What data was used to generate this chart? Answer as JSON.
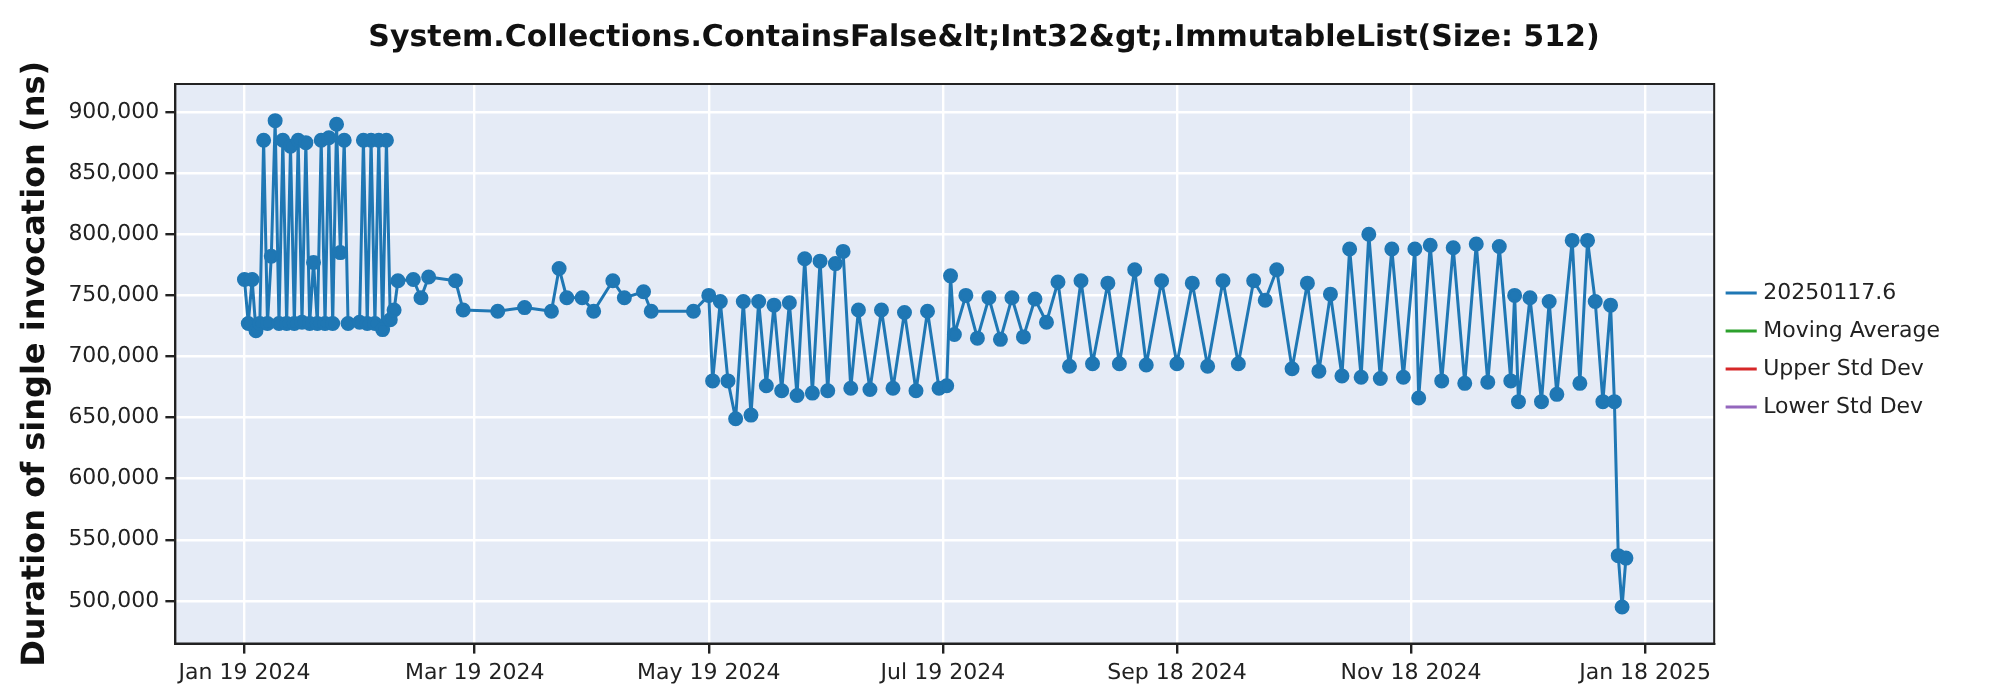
{
  "chart_data": {
    "type": "line",
    "title": "System.Collections.ContainsFalse&lt;Int32&gt;.ImmutableList(Size: 512)",
    "ylabel": "Duration of single invocation (ns)",
    "xlim": [
      "2024-01-01",
      "2025-02-05"
    ],
    "xticks": [
      {
        "value": "2024-01-19",
        "label": "Jan 19 2024"
      },
      {
        "value": "2024-03-19",
        "label": "Mar 19 2024"
      },
      {
        "value": "2024-05-19",
        "label": "May 19 2024"
      },
      {
        "value": "2024-07-19",
        "label": "Jul 19 2024"
      },
      {
        "value": "2024-09-18",
        "label": "Sep 18 2024"
      },
      {
        "value": "2024-11-18",
        "label": "Nov 18 2024"
      },
      {
        "value": "2025-01-18",
        "label": "Jan 18 2025"
      }
    ],
    "ylim": [
      465000,
      923000
    ],
    "yticks": [
      {
        "value": 500000,
        "label": "500,000"
      },
      {
        "value": 550000,
        "label": "550,000"
      },
      {
        "value": 600000,
        "label": "600,000"
      },
      {
        "value": 650000,
        "label": "650,000"
      },
      {
        "value": 700000,
        "label": "700,000"
      },
      {
        "value": 750000,
        "label": "750,000"
      },
      {
        "value": 800000,
        "label": "800,000"
      },
      {
        "value": 850000,
        "label": "850,000"
      },
      {
        "value": 900000,
        "label": "900,000"
      }
    ],
    "grid": true,
    "legend": "right",
    "marker": "circle",
    "line_style": "solid",
    "series": [
      {
        "name": "20250117.6",
        "color": "#1f77b4",
        "x": [
          "2024-01-19",
          "2024-01-20",
          "2024-01-21",
          "2024-01-22",
          "2024-01-23",
          "2024-01-24",
          "2024-01-25",
          "2024-01-26",
          "2024-01-27",
          "2024-01-28",
          "2024-01-29",
          "2024-01-30",
          "2024-01-31",
          "2024-02-01",
          "2024-02-02",
          "2024-02-03",
          "2024-02-04",
          "2024-02-05",
          "2024-02-06",
          "2024-02-07",
          "2024-02-08",
          "2024-02-09",
          "2024-02-10",
          "2024-02-11",
          "2024-02-12",
          "2024-02-13",
          "2024-02-14",
          "2024-02-15",
          "2024-02-18",
          "2024-02-19",
          "2024-02-20",
          "2024-02-21",
          "2024-02-22",
          "2024-02-23",
          "2024-02-24",
          "2024-02-25",
          "2024-02-26",
          "2024-02-27",
          "2024-02-28",
          "2024-03-03",
          "2024-03-05",
          "2024-03-07",
          "2024-03-14",
          "2024-03-16",
          "2024-03-25",
          "2024-04-01",
          "2024-04-08",
          "2024-04-10",
          "2024-04-12",
          "2024-04-16",
          "2024-04-19",
          "2024-04-24",
          "2024-04-27",
          "2024-05-02",
          "2024-05-04",
          "2024-05-15",
          "2024-05-19",
          "2024-05-20",
          "2024-05-22",
          "2024-05-24",
          "2024-05-26",
          "2024-05-28",
          "2024-05-30",
          "2024-06-01",
          "2024-06-03",
          "2024-06-05",
          "2024-06-07",
          "2024-06-09",
          "2024-06-11",
          "2024-06-13",
          "2024-06-15",
          "2024-06-17",
          "2024-06-19",
          "2024-06-21",
          "2024-06-23",
          "2024-06-25",
          "2024-06-27",
          "2024-06-30",
          "2024-07-03",
          "2024-07-06",
          "2024-07-09",
          "2024-07-12",
          "2024-07-15",
          "2024-07-18",
          "2024-07-20",
          "2024-07-21",
          "2024-07-22",
          "2024-07-25",
          "2024-07-28",
          "2024-07-31",
          "2024-08-03",
          "2024-08-06",
          "2024-08-09",
          "2024-08-12",
          "2024-08-15",
          "2024-08-18",
          "2024-08-21",
          "2024-08-24",
          "2024-08-27",
          "2024-08-31",
          "2024-09-03",
          "2024-09-07",
          "2024-09-10",
          "2024-09-14",
          "2024-09-18",
          "2024-09-22",
          "2024-09-26",
          "2024-09-30",
          "2024-10-04",
          "2024-10-08",
          "2024-10-11",
          "2024-10-14",
          "2024-10-18",
          "2024-10-22",
          "2024-10-25",
          "2024-10-28",
          "2024-10-31",
          "2024-11-02",
          "2024-11-05",
          "2024-11-07",
          "2024-11-10",
          "2024-11-13",
          "2024-11-16",
          "2024-11-19",
          "2024-11-20",
          "2024-11-23",
          "2024-11-26",
          "2024-11-29",
          "2024-12-02",
          "2024-12-05",
          "2024-12-08",
          "2024-12-11",
          "2024-12-14",
          "2024-12-15",
          "2024-12-16",
          "2024-12-19",
          "2024-12-22",
          "2024-12-24",
          "2024-12-26",
          "2024-12-30",
          "2025-01-01",
          "2025-01-03",
          "2025-01-05",
          "2025-01-07",
          "2025-01-09",
          "2025-01-10",
          "2025-01-11",
          "2025-01-12",
          "2025-01-13"
        ],
        "values": [
          763000,
          727000,
          763000,
          721000,
          727000,
          877000,
          727000,
          782000,
          893000,
          727000,
          877000,
          727000,
          872000,
          727000,
          877000,
          728000,
          875000,
          727000,
          777000,
          727000,
          877000,
          727000,
          879000,
          727000,
          890000,
          785000,
          877000,
          727000,
          728000,
          877000,
          727000,
          877000,
          727000,
          877000,
          722000,
          877000,
          730000,
          738000,
          762000,
          763000,
          748000,
          765000,
          762000,
          738000,
          737000,
          740000,
          737000,
          772000,
          748000,
          748000,
          737000,
          762000,
          748000,
          753000,
          737000,
          737000,
          750000,
          680000,
          745000,
          680000,
          649000,
          745000,
          652000,
          745000,
          676000,
          742000,
          672000,
          744000,
          668000,
          780000,
          670000,
          778000,
          672000,
          776000,
          786000,
          674000,
          738000,
          673000,
          738000,
          674000,
          736000,
          672000,
          737000,
          674000,
          676000,
          766000,
          718000,
          750000,
          715000,
          748000,
          714000,
          748000,
          716000,
          747000,
          728000,
          761000,
          692000,
          762000,
          694000,
          760000,
          694000,
          771000,
          693000,
          762000,
          694000,
          760000,
          692000,
          762000,
          694000,
          762000,
          746000,
          771000,
          690000,
          760000,
          688000,
          751000,
          684000,
          788000,
          683000,
          800000,
          682000,
          788000,
          683000,
          788000,
          666000,
          791000,
          680000,
          789000,
          678000,
          792000,
          679000,
          790000,
          680000,
          750000,
          663000,
          748000,
          663000,
          745000,
          669000,
          795000,
          678000,
          795000,
          745000,
          663000,
          742000,
          663000,
          537000,
          495000,
          535000
        ]
      },
      {
        "name": "Moving Average",
        "color": "#2ca02c"
      },
      {
        "name": "Upper Std Dev",
        "color": "#d62728"
      },
      {
        "name": "Lower Std Dev",
        "color": "#9467bd"
      }
    ]
  }
}
